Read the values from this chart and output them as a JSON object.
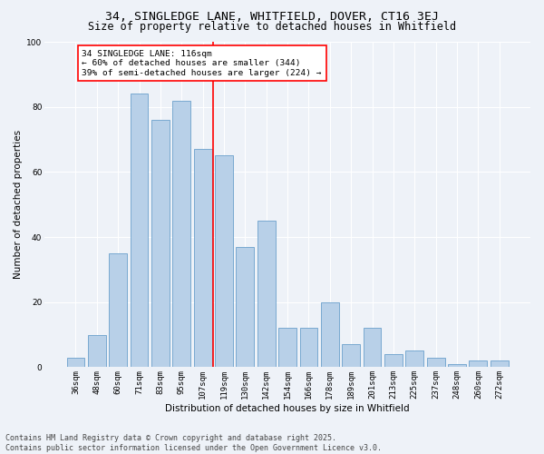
{
  "title1": "34, SINGLEDGE LANE, WHITFIELD, DOVER, CT16 3EJ",
  "title2": "Size of property relative to detached houses in Whitfield",
  "xlabel": "Distribution of detached houses by size in Whitfield",
  "ylabel": "Number of detached properties",
  "categories": [
    "36sqm",
    "48sqm",
    "60sqm",
    "71sqm",
    "83sqm",
    "95sqm",
    "107sqm",
    "119sqm",
    "130sqm",
    "142sqm",
    "154sqm",
    "166sqm",
    "178sqm",
    "189sqm",
    "201sqm",
    "213sqm",
    "225sqm",
    "237sqm",
    "248sqm",
    "260sqm",
    "272sqm"
  ],
  "values": [
    3,
    10,
    35,
    84,
    76,
    82,
    67,
    65,
    37,
    45,
    12,
    12,
    20,
    7,
    12,
    4,
    5,
    3,
    1,
    2,
    2
  ],
  "bar_color": "#b8d0e8",
  "bar_edge_color": "#6aA0cc",
  "vline_color": "red",
  "annotation_text": "34 SINGLEDGE LANE: 116sqm\n← 60% of detached houses are smaller (344)\n39% of semi-detached houses are larger (224) →",
  "annotation_box_color": "white",
  "annotation_box_edge": "red",
  "background_color": "#eef2f8",
  "grid_color": "white",
  "footer": "Contains HM Land Registry data © Crown copyright and database right 2025.\nContains public sector information licensed under the Open Government Licence v3.0.",
  "ylim": [
    0,
    100
  ],
  "title_fontsize": 9.5,
  "subtitle_fontsize": 8.5,
  "axis_fontsize": 7.5,
  "tick_fontsize": 6.5,
  "annotation_fontsize": 6.8,
  "footer_fontsize": 6.0
}
